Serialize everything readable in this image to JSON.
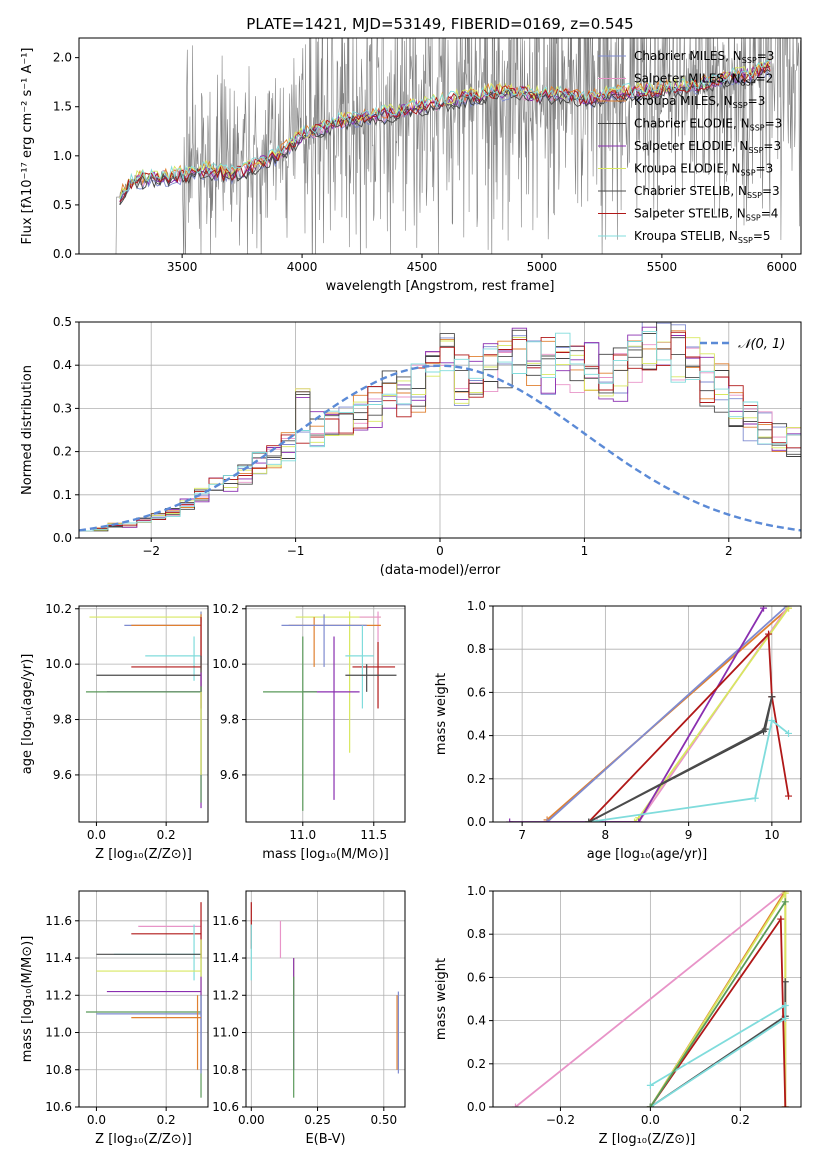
{
  "figure": {
    "title": "PLATE=1421, MJD=53149, FIBERID=0169, z=0.545"
  },
  "colors": {
    "Chabrier MILES": "#7f8bd0",
    "Salpeter MILES": "#e894c8",
    "Kroupa MILES": "#e08030",
    "Chabrier ELODIE": "#404040",
    "Salpeter ELODIE": "#8a2fb0",
    "Kroupa ELODIE": "#d8e860",
    "Chabrier STELIB": "#4c4c4c",
    "Salpeter STELIB": "#b01818",
    "Kroupa STELIB": "#80dcdc",
    "data": "#808080",
    "gauss": "#5b8ad6",
    "green": "#5a9a5a",
    "orange2": "#d07830"
  },
  "chart_data": [
    {
      "id": "spectrum",
      "type": "line",
      "title": "PLATE=1421, MJD=53149, FIBERID=0169, z=0.545",
      "xlabel": "wavelength [Angstrom, rest frame]",
      "ylabel": "Flux [fλ10⁻¹⁷ erg cm⁻² s⁻¹ A⁻¹]",
      "xlim": [
        3070,
        6080
      ],
      "ylim": [
        0,
        2.2
      ],
      "xticks": [
        3500,
        4000,
        4500,
        5000,
        5500,
        6000
      ],
      "yticks": [
        0.0,
        0.5,
        1.0,
        1.5,
        2.0
      ],
      "legend_position": "upper-right",
      "legend": [
        {
          "label": "Chabrier MILES, N",
          "sub": "SSP",
          "suffix": "=3",
          "key": "Chabrier MILES"
        },
        {
          "label": "Salpeter MILES, N",
          "sub": "SSP",
          "suffix": "=2",
          "key": "Salpeter MILES"
        },
        {
          "label": "Kroupa MILES, N",
          "sub": "SSP",
          "suffix": "=3",
          "key": "Kroupa MILES"
        },
        {
          "label": "Chabrier ELODIE, N",
          "sub": "SSP",
          "suffix": "=3",
          "key": "Chabrier ELODIE"
        },
        {
          "label": "Salpeter ELODIE, N",
          "sub": "SSP",
          "suffix": "=3",
          "key": "Salpeter ELODIE"
        },
        {
          "label": "Kroupa ELODIE, N",
          "sub": "SSP",
          "suffix": "=3",
          "key": "Kroupa ELODIE"
        },
        {
          "label": "Chabrier STELIB, N",
          "sub": "SSP",
          "suffix": "=3",
          "key": "Chabrier STELIB"
        },
        {
          "label": "Salpeter STELIB, N",
          "sub": "SSP",
          "suffix": "=4",
          "key": "Salpeter STELIB"
        },
        {
          "label": "Kroupa STELIB, N",
          "sub": "SSP",
          "suffix": "=5",
          "key": "Kroupa STELIB"
        }
      ],
      "data_start_wavelength": 3220,
      "model_continuum": [
        [
          3240,
          0.6
        ],
        [
          3300,
          0.75
        ],
        [
          3400,
          0.78
        ],
        [
          3500,
          0.8
        ],
        [
          3600,
          0.85
        ],
        [
          3700,
          0.8
        ],
        [
          3800,
          0.9
        ],
        [
          3900,
          1.0
        ],
        [
          4000,
          1.2
        ],
        [
          4100,
          1.3
        ],
        [
          4200,
          1.38
        ],
        [
          4300,
          1.4
        ],
        [
          4400,
          1.45
        ],
        [
          4500,
          1.5
        ],
        [
          4600,
          1.55
        ],
        [
          4700,
          1.6
        ],
        [
          4800,
          1.65
        ],
        [
          4900,
          1.65
        ],
        [
          5000,
          1.6
        ],
        [
          5100,
          1.62
        ],
        [
          5200,
          1.58
        ],
        [
          5300,
          1.62
        ],
        [
          5400,
          1.65
        ],
        [
          5500,
          1.68
        ],
        [
          5600,
          1.7
        ],
        [
          5700,
          1.75
        ],
        [
          5800,
          1.8
        ],
        [
          5900,
          1.85
        ],
        [
          5950,
          1.9
        ]
      ]
    },
    {
      "id": "residuals",
      "type": "histogram",
      "xlabel": "(data-model)/error",
      "ylabel": "Normed distribution",
      "xlim": [
        -2.5,
        2.5
      ],
      "ylim": [
        0,
        0.5
      ],
      "xticks": [
        -2,
        -1,
        0,
        1,
        2
      ],
      "yticks": [
        0.0,
        0.1,
        0.2,
        0.3,
        0.4,
        0.5
      ],
      "legend": [
        {
          "label": "𝒩(0, 1)"
        }
      ],
      "legend_position": "upper-right",
      "bin_width": 0.1,
      "bins_start": -2.5,
      "base_values": [
        0.02,
        0.02,
        0.03,
        0.03,
        0.04,
        0.05,
        0.06,
        0.08,
        0.1,
        0.12,
        0.13,
        0.15,
        0.17,
        0.19,
        0.21,
        0.22,
        0.25,
        0.27,
        0.28,
        0.3,
        0.31,
        0.33,
        0.34,
        0.35,
        0.36,
        0.37,
        0.37,
        0.38,
        0.39,
        0.4,
        0.41,
        0.4,
        0.4,
        0.41,
        0.4,
        0.39,
        0.39,
        0.38,
        0.4,
        0.44,
        0.46,
        0.42,
        0.4,
        0.37,
        0.35,
        0.31,
        0.27,
        0.25,
        0.23,
        0.22,
        0.2,
        0.18,
        0.17,
        0.15,
        0.14,
        0.13,
        0.12,
        0.1,
        0.09,
        0.08,
        0.07,
        0.07,
        0.06,
        0.05,
        0.05,
        0.04,
        0.04,
        0.04,
        0.04,
        0.04,
        0.03,
        0.03,
        0.03,
        0.03,
        0.03,
        0.03,
        0.03,
        0.03,
        0.02,
        0.02
      ],
      "spikes": {
        "-1.0": 0.34,
        "0.0": 0.46,
        "0.5": 0.48,
        "0.4": 0.44,
        "-0.1": 0.42
      }
    },
    {
      "id": "age_vs_Z",
      "type": "errorbar",
      "xlabel": "Z [log₁₀(Z/Z⊙)]",
      "ylabel": "age  [log₁₀(age/yr)]",
      "xlim": [
        -0.05,
        0.32
      ],
      "ylim": [
        9.43,
        10.21
      ],
      "xticks": [
        0.0,
        0.2
      ],
      "yticks": [
        9.6,
        9.8,
        10.0,
        10.2
      ],
      "points": [
        {
          "c": "Kroupa ELODIE",
          "x": 0.3,
          "xlo": -0.02,
          "xhi": 0.3,
          "y": 10.17,
          "ylo": 10.15,
          "yhi": 10.19
        },
        {
          "c": "Chabrier MILES",
          "x": 0.3,
          "xlo": 0.08,
          "xhi": 0.3,
          "y": 10.14,
          "ylo": 10.0,
          "yhi": 10.19
        },
        {
          "c": "Kroupa MILES",
          "x": 0.3,
          "xlo": 0.1,
          "xhi": 0.3,
          "y": 10.14,
          "ylo": 9.98,
          "yhi": 10.18
        },
        {
          "c": "Kroupa STELIB",
          "x": 0.28,
          "xlo": 0.14,
          "xhi": 0.3,
          "y": 10.03,
          "ylo": 9.94,
          "yhi": 10.1
        },
        {
          "c": "Salpeter STELIB",
          "x": 0.3,
          "xlo": 0.1,
          "xhi": 0.3,
          "y": 9.99,
          "ylo": 9.84,
          "yhi": 10.17
        },
        {
          "c": "Chabrier STELIB",
          "x": 0.3,
          "xlo": 0.0,
          "xhi": 0.3,
          "y": 9.96,
          "ylo": 9.9,
          "yhi": 10.03
        },
        {
          "c": "Salpeter ELODIE",
          "x": 0.3,
          "xlo": 0.03,
          "xhi": 0.3,
          "y": 9.9,
          "ylo": 9.48,
          "yhi": 9.97
        },
        {
          "c": "green",
          "x": 0.3,
          "xlo": -0.03,
          "xhi": 0.3,
          "y": 9.9,
          "ylo": 9.5,
          "yhi": 9.92
        },
        {
          "c": "Kroupa ELODIE",
          "x": 0.3,
          "xlo": 0.3,
          "xhi": 0.3,
          "y": 9.7,
          "ylo": 9.6,
          "yhi": 9.9
        }
      ]
    },
    {
      "id": "age_vs_mass",
      "type": "errorbar",
      "xlabel": "mass [log₁₀(M/M⊙)]",
      "ylabel": "",
      "xlim": [
        10.6,
        11.72
      ],
      "ylim": [
        9.43,
        10.21
      ],
      "xticks": [
        11.0,
        11.5
      ],
      "yticks": [
        9.6,
        9.8,
        10.0,
        10.2
      ],
      "points": [
        {
          "c": "Kroupa ELODIE",
          "x": 11.33,
          "xlo": 10.95,
          "xhi": 11.55,
          "y": 10.17,
          "ylo": 9.68,
          "yhi": 10.19
        },
        {
          "c": "Salpeter MILES",
          "x": 11.53,
          "xlo": 11.4,
          "xhi": 11.55,
          "y": 10.17,
          "ylo": 10.08,
          "yhi": 10.19
        },
        {
          "c": "Kroupa MILES",
          "x": 11.08,
          "xlo": 10.9,
          "xhi": 11.55,
          "y": 10.14,
          "ylo": 9.99,
          "yhi": 10.17
        },
        {
          "c": "Chabrier MILES",
          "x": 11.15,
          "xlo": 10.85,
          "xhi": 11.45,
          "y": 10.14,
          "ylo": 9.99,
          "yhi": 10.18
        },
        {
          "c": "Salpeter STELIB",
          "x": 11.53,
          "xlo": 11.35,
          "xhi": 11.65,
          "y": 9.99,
          "ylo": 9.84,
          "yhi": 10.08
        },
        {
          "c": "Kroupa STELIB",
          "x": 11.42,
          "xlo": 11.3,
          "xhi": 11.5,
          "y": 10.03,
          "ylo": 9.84,
          "yhi": 10.14
        },
        {
          "c": "Chabrier STELIB",
          "x": 11.45,
          "xlo": 11.3,
          "xhi": 11.66,
          "y": 9.96,
          "ylo": 9.9,
          "yhi": 10.0
        },
        {
          "c": "Salpeter ELODIE",
          "x": 11.22,
          "xlo": 11.0,
          "xhi": 11.4,
          "y": 9.9,
          "ylo": 9.51,
          "yhi": 10.1
        },
        {
          "c": "green",
          "x": 11.0,
          "xlo": 10.72,
          "xhi": 11.1,
          "y": 9.9,
          "ylo": 9.47,
          "yhi": 10.1
        }
      ]
    },
    {
      "id": "mw_vs_age",
      "type": "line",
      "xlabel": "age  [log₁₀(age/yr)]",
      "ylabel": "mass weight",
      "xlim": [
        6.65,
        10.35
      ],
      "ylim": [
        0,
        1.0
      ],
      "xticks": [
        7,
        8,
        9,
        10
      ],
      "yticks": [
        0.0,
        0.2,
        0.4,
        0.6,
        0.8,
        1.0
      ],
      "series": [
        {
          "c": "Kroupa MILES",
          "points": [
            [
              7.3,
              0.0
            ],
            [
              7.3,
              0.01
            ],
            [
              10.2,
              0.99
            ]
          ]
        },
        {
          "c": "Chabrier MILES",
          "points": [
            [
              7.3,
              0.0
            ],
            [
              10.18,
              1.0
            ]
          ]
        },
        {
          "c": "Salpeter MILES",
          "points": [
            [
              7.9,
              0.0
            ],
            [
              8.4,
              0.0
            ],
            [
              10.2,
              1.0
            ]
          ]
        },
        {
          "c": "Kroupa ELODIE",
          "points": [
            [
              8.35,
              0.0
            ],
            [
              8.4,
              0.02
            ],
            [
              10.2,
              0.99
            ]
          ]
        },
        {
          "c": "Salpeter ELODIE",
          "points": [
            [
              6.85,
              0.0
            ],
            [
              8.4,
              0.0
            ],
            [
              9.9,
              0.99
            ]
          ]
        },
        {
          "c": "Chabrier ELODIE",
          "points": [
            [
              7.8,
              0.0
            ],
            [
              9.9,
              0.42
            ],
            [
              10.0,
              0.58
            ]
          ]
        },
        {
          "c": "Salpeter STELIB",
          "points": [
            [
              7.8,
              0.0
            ],
            [
              9.96,
              0.87
            ],
            [
              10.0,
              0.58
            ],
            [
              10.2,
              0.12
            ]
          ]
        },
        {
          "c": "Kroupa STELIB",
          "points": [
            [
              7.8,
              0.0
            ],
            [
              9.8,
              0.11
            ],
            [
              10.0,
              0.47
            ],
            [
              10.2,
              0.41
            ]
          ]
        },
        {
          "c": "Chabrier STELIB",
          "points": [
            [
              7.8,
              0.0
            ],
            [
              9.92,
              0.43
            ],
            [
              10.0,
              0.58
            ]
          ]
        }
      ]
    },
    {
      "id": "mass_vs_Z",
      "type": "errorbar",
      "xlabel": "Z [log₁₀(Z/Z⊙)]",
      "ylabel": "mass [log₁₀(M/M⊙)]",
      "xlim": [
        -0.05,
        0.32
      ],
      "ylim": [
        10.6,
        11.76
      ],
      "xticks": [
        0.0,
        0.2
      ],
      "yticks": [
        10.6,
        10.8,
        11.0,
        11.2,
        11.4,
        11.6
      ],
      "points": [
        {
          "c": "Salpeter MILES",
          "x": 0.3,
          "xlo": 0.12,
          "xhi": 0.3,
          "y": 11.57,
          "ylo": 11.4,
          "yhi": 11.6
        },
        {
          "c": "Salpeter STELIB",
          "x": 0.3,
          "xlo": 0.1,
          "xhi": 0.3,
          "y": 11.53,
          "ylo": 11.4,
          "yhi": 11.7
        },
        {
          "c": "Kroupa STELIB",
          "x": 0.28,
          "xlo": 0.05,
          "xhi": 0.3,
          "y": 11.42,
          "ylo": 11.28,
          "yhi": 11.58
        },
        {
          "c": "Chabrier STELIB",
          "x": 0.3,
          "xlo": 0.0,
          "xhi": 0.3,
          "y": 11.42,
          "ylo": 11.3,
          "yhi": 11.5
        },
        {
          "c": "Kroupa ELODIE",
          "x": 0.3,
          "xlo": 0.0,
          "xhi": 0.3,
          "y": 11.33,
          "ylo": 11.2,
          "yhi": 11.5
        },
        {
          "c": "Salpeter ELODIE",
          "x": 0.3,
          "xlo": 0.03,
          "xhi": 0.3,
          "y": 11.22,
          "ylo": 10.8,
          "yhi": 11.3
        },
        {
          "c": "green",
          "x": 0.3,
          "xlo": -0.03,
          "xhi": 0.3,
          "y": 11.11,
          "ylo": 10.65,
          "yhi": 11.2
        },
        {
          "c": "Chabrier MILES",
          "x": 0.3,
          "xlo": 0.0,
          "xhi": 0.3,
          "y": 11.1,
          "ylo": 10.78,
          "yhi": 11.2
        },
        {
          "c": "Kroupa MILES",
          "x": 0.29,
          "xlo": 0.1,
          "xhi": 0.3,
          "y": 11.08,
          "ylo": 10.8,
          "yhi": 11.2
        }
      ]
    },
    {
      "id": "mass_vs_EBV",
      "type": "errorbar",
      "xlabel": "E(B-V)",
      "ylabel": "",
      "xlim": [
        -0.02,
        0.58
      ],
      "ylim": [
        10.6,
        11.76
      ],
      "xticks": [
        0.0,
        0.25,
        0.5
      ],
      "tick_labels": [
        "0.00",
        "0.25",
        "0.50"
      ],
      "yticks": [
        10.6,
        10.8,
        11.0,
        11.2,
        11.4,
        11.6
      ],
      "points": [
        {
          "c": "Salpeter STELIB",
          "x": 0.0,
          "y": 11.55,
          "ylo": 11.45,
          "yhi": 11.7
        },
        {
          "c": "Kroupa STELIB",
          "x": 0.0,
          "y": 11.42,
          "ylo": 11.28,
          "yhi": 11.58
        },
        {
          "c": "Salpeter MILES",
          "x": 0.11,
          "y": 11.5,
          "ylo": 11.4,
          "yhi": 11.6
        },
        {
          "c": "Kroupa ELODIE",
          "x": 0.16,
          "y": 11.33,
          "ylo": 11.2,
          "yhi": 11.4
        },
        {
          "c": "Salpeter ELODIE",
          "x": 0.16,
          "y": 11.2,
          "ylo": 10.8,
          "yhi": 11.4
        },
        {
          "c": "green",
          "x": 0.16,
          "y": 11.1,
          "ylo": 10.65,
          "yhi": 11.3
        },
        {
          "c": "Kroupa MILES",
          "x": 0.55,
          "y": 11.08,
          "ylo": 10.8,
          "yhi": 11.2
        },
        {
          "c": "Chabrier MILES",
          "x": 0.555,
          "y": 11.1,
          "ylo": 10.78,
          "yhi": 11.22
        }
      ]
    },
    {
      "id": "mw_vs_Z",
      "type": "line",
      "xlabel": "Z [log₁₀(Z/Z⊙)]",
      "ylabel": "mass weight",
      "xlim": [
        -0.35,
        0.335
      ],
      "ylim": [
        0,
        1.0
      ],
      "xticks": [
        -0.2,
        0.0,
        0.2
      ],
      "yticks": [
        0.0,
        0.2,
        0.4,
        0.6,
        0.8,
        1.0
      ],
      "series": [
        {
          "c": "Salpeter MILES",
          "points": [
            [
              -0.3,
              0.0
            ],
            [
              0.3,
              1.0
            ]
          ]
        },
        {
          "c": "Kroupa MILES",
          "points": [
            [
              0.0,
              0.0
            ],
            [
              0.3,
              1.0
            ],
            [
              0.3,
              0.0
            ]
          ]
        },
        {
          "c": "Kroupa ELODIE",
          "points": [
            [
              0.0,
              0.0
            ],
            [
              0.3,
              0.99
            ],
            [
              0.3,
              0.0
            ]
          ]
        },
        {
          "c": "Chabrier STELIB",
          "points": [
            [
              0.0,
              0.0
            ],
            [
              0.3,
              0.42
            ],
            [
              0.3,
              0.58
            ]
          ]
        },
        {
          "c": "Salpeter STELIB",
          "points": [
            [
              0.0,
              0.0
            ],
            [
              0.29,
              0.87
            ],
            [
              0.3,
              0.0
            ]
          ]
        },
        {
          "c": "Kroupa STELIB",
          "points": [
            [
              0.0,
              0.1
            ],
            [
              0.3,
              0.47
            ],
            [
              0.3,
              0.41
            ],
            [
              0.0,
              0.0
            ]
          ]
        },
        {
          "c": "green",
          "points": [
            [
              0.0,
              0.0
            ],
            [
              0.3,
              0.95
            ]
          ]
        }
      ]
    }
  ]
}
